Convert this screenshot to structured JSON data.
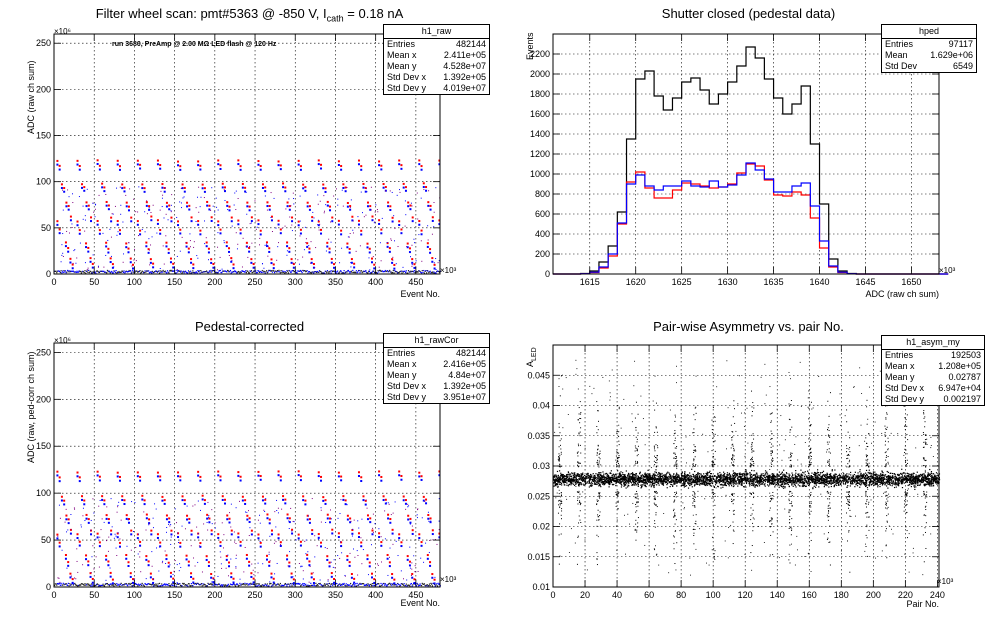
{
  "pads": [
    {
      "id": "raw",
      "title_main": "Filter wheel scan: pmt#5363 @  -850 V, I",
      "title_sub": "cath",
      "title_tail": " = 0.18 nA",
      "ylabel": "ADC (raw ch sum)",
      "xlabel": "Event No.",
      "x_multiplier": "×10³",
      "y_multiplier": "×10⁶",
      "annotation": "run 3680, PreAmp @ 2.00 MΩ LED flash @  120 Hz",
      "stats": {
        "name": "h1_raw",
        "rows": [
          {
            "label": "Entries",
            "value": "482144"
          },
          {
            "label": "Mean x",
            "value": "2.411e+05"
          },
          {
            "label": "Mean y",
            "value": "4.528e+07"
          },
          {
            "label": "Std Dev x",
            "value": "1.392e+05"
          },
          {
            "label": "Std Dev y",
            "value": "4.019e+07"
          }
        ]
      }
    },
    {
      "id": "ped",
      "title_main": "Shutter closed (pedestal data)",
      "ylabel": "Events",
      "xlabel": "ADC (raw ch sum)",
      "x_multiplier": "×10³",
      "stats": {
        "name": "hped",
        "rows": [
          {
            "label": "Entries",
            "value": "97117"
          },
          {
            "label": "Mean",
            "value": "1.629e+06"
          },
          {
            "label": "Std Dev",
            "value": "6549"
          }
        ]
      }
    },
    {
      "id": "cor",
      "title_main": "Pedestal-corrected",
      "ylabel": "ADC (raw, ped-corr ch sum)",
      "xlabel": "Event No.",
      "x_multiplier": "×10³",
      "y_multiplier": "×10⁶",
      "stats": {
        "name": "h1_rawCor",
        "rows": [
          {
            "label": "Entries",
            "value": "482144"
          },
          {
            "label": "Mean x",
            "value": "2.416e+05"
          },
          {
            "label": "Mean y",
            "value": "4.84e+07"
          },
          {
            "label": "Std Dev x",
            "value": "1.392e+05"
          },
          {
            "label": "Std Dev y",
            "value": "3.951e+07"
          }
        ]
      }
    },
    {
      "id": "asym",
      "title_main": "Pair-wise Asymmetry vs. pair No.",
      "ylabel_main": "A",
      "ylabel_sub": "LED",
      "xlabel": "Pair No.",
      "x_multiplier": "×10³",
      "stats": {
        "name": "h1_asym_my",
        "rows": [
          {
            "label": "Entries",
            "value": "192503"
          },
          {
            "label": "Mean x",
            "value": "1.208e+05"
          },
          {
            "label": "Mean y",
            "value": "0.02787"
          },
          {
            "label": "Std Dev x",
            "value": "6.947e+04"
          },
          {
            "label": "Std Dev y",
            "value": "0.002197"
          }
        ]
      }
    }
  ],
  "chart_data": [
    {
      "type": "scatter",
      "id": "raw",
      "xlim": [
        0,
        480
      ],
      "ylim": [
        0,
        260
      ],
      "xticks": [
        0,
        50,
        100,
        150,
        200,
        250,
        300,
        350,
        400,
        450
      ],
      "yticks": [
        0,
        50,
        100,
        150,
        200,
        250
      ],
      "grid": true,
      "levels": [
        122,
        117,
        97,
        93,
        77,
        73,
        61,
        57,
        47,
        33,
        27,
        16,
        10
      ],
      "period": 25,
      "series": [
        {
          "color": "#ff0000"
        },
        {
          "color": "#0000ff"
        }
      ]
    },
    {
      "type": "line",
      "id": "ped",
      "xlim": [
        1611,
        1653
      ],
      "ylim": [
        0,
        2400
      ],
      "xticks": [
        1615,
        1620,
        1625,
        1630,
        1635,
        1640,
        1645,
        1650
      ],
      "yticks": [
        0,
        200,
        400,
        600,
        800,
        1000,
        1200,
        1400,
        1600,
        1800,
        2000,
        2200
      ],
      "grid": true,
      "series": [
        {
          "color": "#000000",
          "points": [
            [
              1611,
              0
            ],
            [
              1613,
              0
            ],
            [
              1614,
              5
            ],
            [
              1615,
              30
            ],
            [
              1616,
              120
            ],
            [
              1617,
              280
            ],
            [
              1618,
              620
            ],
            [
              1619,
              1350
            ],
            [
              1620,
              1950
            ],
            [
              1621,
              2030
            ],
            [
              1622,
              1780
            ],
            [
              1623,
              1640
            ],
            [
              1624,
              1760
            ],
            [
              1625,
              1920
            ],
            [
              1626,
              1960
            ],
            [
              1627,
              1840
            ],
            [
              1628,
              1700
            ],
            [
              1629,
              1800
            ],
            [
              1630,
              1920
            ],
            [
              1631,
              2080
            ],
            [
              1632,
              2270
            ],
            [
              1633,
              2160
            ],
            [
              1634,
              1950
            ],
            [
              1635,
              1760
            ],
            [
              1636,
              1600
            ],
            [
              1637,
              1700
            ],
            [
              1638,
              1880
            ],
            [
              1639,
              1300
            ],
            [
              1640,
              700
            ],
            [
              1641,
              150
            ],
            [
              1642,
              30
            ],
            [
              1643,
              5
            ],
            [
              1644,
              0
            ],
            [
              1653,
              0
            ]
          ]
        },
        {
          "color": "#ff0000",
          "points": [
            [
              1611,
              0
            ],
            [
              1613,
              0
            ],
            [
              1614,
              3
            ],
            [
              1615,
              15
            ],
            [
              1616,
              60
            ],
            [
              1617,
              180
            ],
            [
              1618,
              500
            ],
            [
              1619,
              920
            ],
            [
              1620,
              1020
            ],
            [
              1621,
              860
            ],
            [
              1622,
              760
            ],
            [
              1623,
              760
            ],
            [
              1624,
              840
            ],
            [
              1625,
              910
            ],
            [
              1626,
              900
            ],
            [
              1627,
              880
            ],
            [
              1628,
              860
            ],
            [
              1629,
              870
            ],
            [
              1630,
              900
            ],
            [
              1631,
              1010
            ],
            [
              1632,
              1100
            ],
            [
              1633,
              1080
            ],
            [
              1634,
              940
            ],
            [
              1635,
              790
            ],
            [
              1636,
              780
            ],
            [
              1637,
              820
            ],
            [
              1638,
              790
            ],
            [
              1639,
              560
            ],
            [
              1640,
              260
            ],
            [
              1641,
              70
            ],
            [
              1642,
              15
            ],
            [
              1643,
              2
            ],
            [
              1644,
              0
            ],
            [
              1653,
              0
            ]
          ]
        },
        {
          "color": "#0000ff",
          "points": [
            [
              1611,
              0
            ],
            [
              1613,
              0
            ],
            [
              1614,
              3
            ],
            [
              1615,
              18
            ],
            [
              1616,
              70
            ],
            [
              1617,
              200
            ],
            [
              1618,
              510
            ],
            [
              1619,
              900
            ],
            [
              1620,
              990
            ],
            [
              1621,
              880
            ],
            [
              1622,
              840
            ],
            [
              1623,
              880
            ],
            [
              1624,
              880
            ],
            [
              1625,
              930
            ],
            [
              1626,
              880
            ],
            [
              1627,
              870
            ],
            [
              1628,
              930
            ],
            [
              1629,
              870
            ],
            [
              1630,
              890
            ],
            [
              1631,
              990
            ],
            [
              1632,
              1110
            ],
            [
              1633,
              1040
            ],
            [
              1634,
              950
            ],
            [
              1635,
              820
            ],
            [
              1636,
              820
            ],
            [
              1637,
              880
            ],
            [
              1638,
              910
            ],
            [
              1639,
              680
            ],
            [
              1640,
              330
            ],
            [
              1641,
              80
            ],
            [
              1642,
              18
            ],
            [
              1643,
              3
            ],
            [
              1644,
              0
            ],
            [
              1653,
              0
            ]
          ]
        }
      ]
    },
    {
      "type": "scatter",
      "id": "cor",
      "xlim": [
        0,
        480
      ],
      "ylim": [
        0,
        260
      ],
      "xticks": [
        0,
        50,
        100,
        150,
        200,
        250,
        300,
        350,
        400,
        450
      ],
      "yticks": [
        0,
        50,
        100,
        150,
        200,
        250
      ],
      "grid": true,
      "levels": [
        122,
        117,
        96,
        92,
        76,
        72,
        60,
        56,
        47,
        33,
        26,
        14,
        8
      ],
      "period": 25,
      "series": [
        {
          "color": "#ff0000"
        },
        {
          "color": "#0000ff"
        }
      ]
    },
    {
      "type": "scatter",
      "id": "asym",
      "xlim": [
        0,
        241
      ],
      "ylim": [
        0.01,
        0.05
      ],
      "xticks": [
        0,
        20,
        40,
        60,
        80,
        100,
        120,
        140,
        160,
        180,
        200,
        220,
        240
      ],
      "yticks": [
        0.01,
        0.015,
        0.02,
        0.025,
        0.03,
        0.035,
        0.04,
        0.045
      ],
      "grid": true,
      "band_center": 0.0279,
      "band_halfwidth": 0.0011,
      "spike_period": 12,
      "series": [
        {
          "color": "#000000"
        }
      ]
    }
  ]
}
